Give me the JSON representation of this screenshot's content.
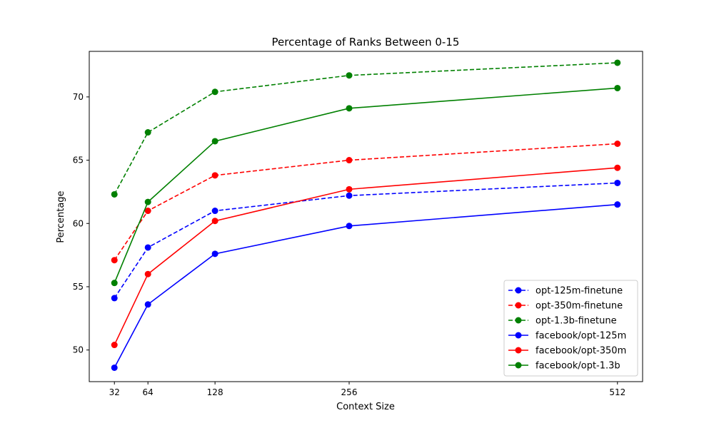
{
  "chart_data": {
    "type": "line",
    "title": "Percentage of Ranks Between 0-15",
    "xlabel": "Context Size",
    "ylabel": "Percentage",
    "x": [
      32,
      64,
      128,
      256,
      512
    ],
    "xticks": [
      "32",
      "64",
      "128",
      "256",
      "512"
    ],
    "yticks": [
      "50",
      "55",
      "60",
      "65",
      "70"
    ],
    "xlim": [
      8,
      536
    ],
    "ylim": [
      47.5,
      73.6
    ],
    "grid": false,
    "legend_position": "lower-right",
    "series": [
      {
        "name": "opt-125m-finetune",
        "color": "#0000ff",
        "dashed": true,
        "values": [
          54.1,
          58.1,
          61.0,
          62.2,
          63.2
        ]
      },
      {
        "name": "opt-350m-finetune",
        "color": "#ff0000",
        "dashed": true,
        "values": [
          57.1,
          61.0,
          63.8,
          65.0,
          66.3
        ]
      },
      {
        "name": "opt-1.3b-finetune",
        "color": "#008000",
        "dashed": true,
        "values": [
          62.3,
          67.2,
          70.4,
          71.7,
          72.7
        ]
      },
      {
        "name": "facebook/opt-125m",
        "color": "#0000ff",
        "dashed": false,
        "values": [
          48.6,
          53.6,
          57.6,
          59.8,
          61.5
        ]
      },
      {
        "name": "facebook/opt-350m",
        "color": "#ff0000",
        "dashed": false,
        "values": [
          50.4,
          56.0,
          60.2,
          62.7,
          64.4
        ]
      },
      {
        "name": "facebook/opt-1.3b",
        "color": "#008000",
        "dashed": false,
        "values": [
          55.3,
          61.7,
          66.5,
          69.1,
          70.7
        ]
      }
    ]
  }
}
